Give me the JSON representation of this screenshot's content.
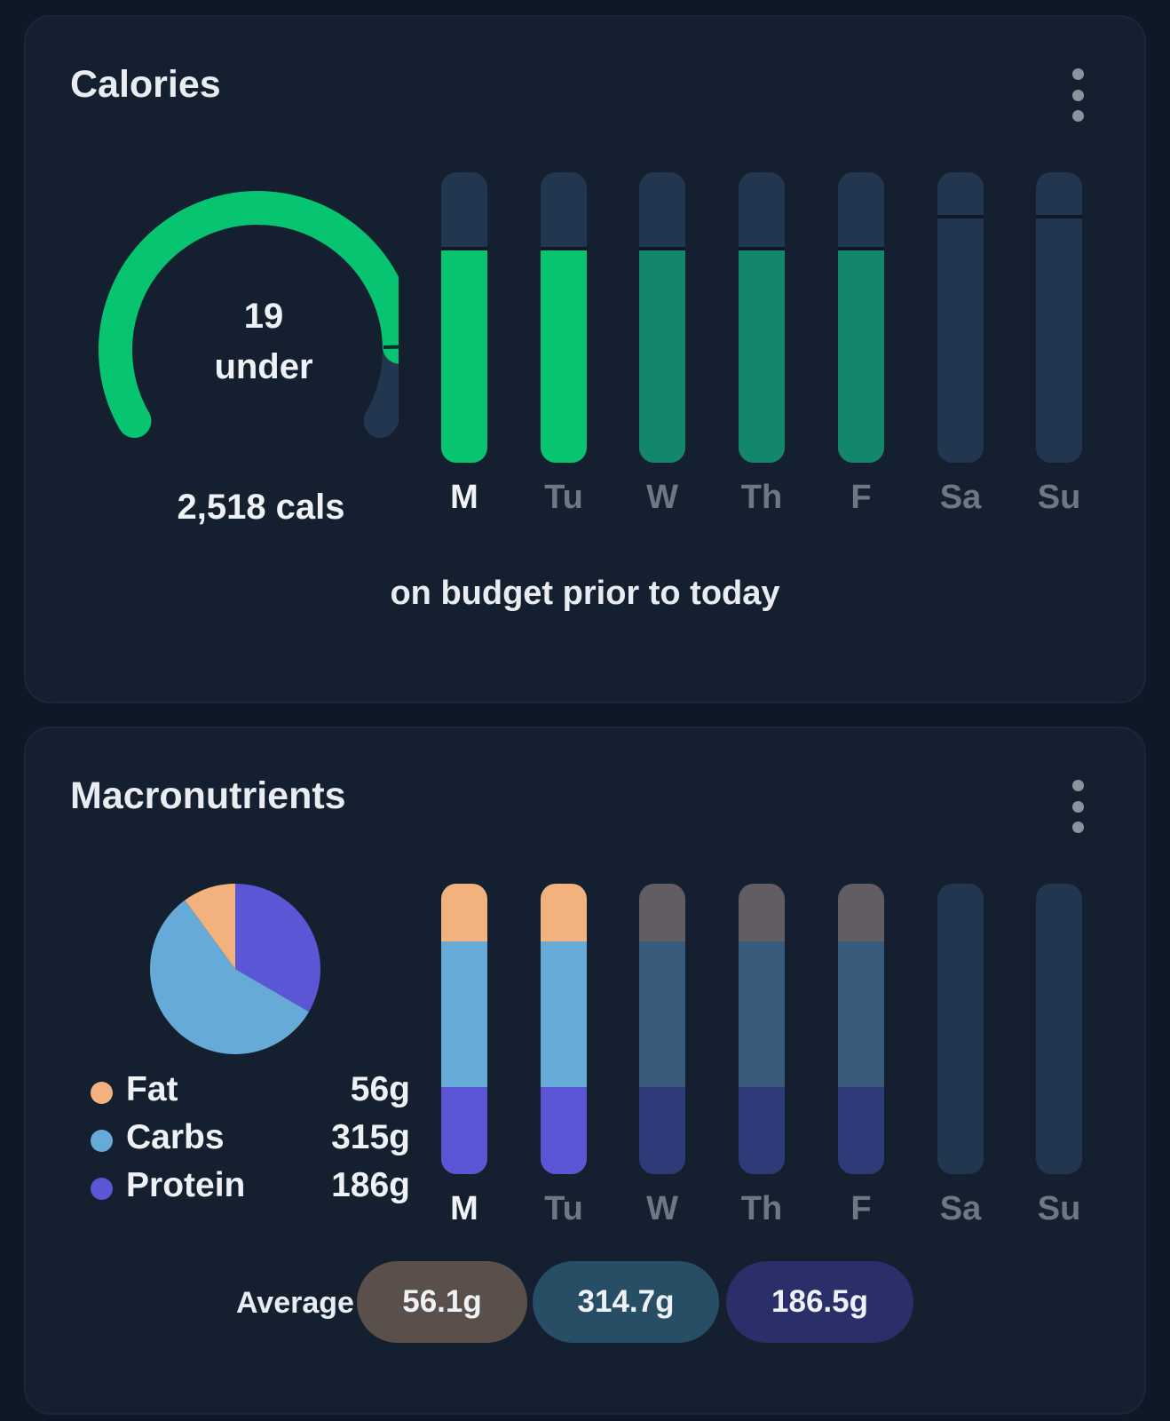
{
  "calories": {
    "title": "Calories",
    "gauge_value": "19",
    "gauge_label": "under",
    "gauge_fraction": 0.87,
    "total": "2,518 cals",
    "footer": "on budget prior to today",
    "days": [
      "M",
      "Tu",
      "W",
      "Th",
      "F",
      "Sa",
      "Su"
    ],
    "today_index": 0,
    "target_fraction": [
      0.73,
      0.73,
      0.73,
      0.73,
      0.73,
      0.84,
      0.84
    ],
    "fill_fraction": [
      0.73,
      0.73,
      0.73,
      0.73,
      0.73,
      0,
      0
    ],
    "colors": {
      "accent": "#06c46f",
      "accent_dim": "#12876c",
      "track": "#223650",
      "target_line": "#10192a"
    }
  },
  "macros": {
    "title": "Macronutrients",
    "legend": [
      {
        "name": "Fat",
        "value": "56g",
        "color": "#f3b27d"
      },
      {
        "name": "Carbs",
        "value": "315g",
        "color": "#66aad7"
      },
      {
        "name": "Protein",
        "value": "186g",
        "color": "#5b56d6"
      }
    ],
    "days": [
      "M",
      "Tu",
      "W",
      "Th",
      "F",
      "Sa",
      "Su"
    ],
    "today_index": 0,
    "bars": [
      {
        "fat": 0.2,
        "carbs": 0.5,
        "protein": 0.3,
        "state": "logged"
      },
      {
        "fat": 0.2,
        "carbs": 0.5,
        "protein": 0.3,
        "state": "logged"
      },
      {
        "fat": 0.2,
        "carbs": 0.5,
        "protein": 0.3,
        "state": "projected"
      },
      {
        "fat": 0.2,
        "carbs": 0.5,
        "protein": 0.3,
        "state": "projected"
      },
      {
        "fat": 0.2,
        "carbs": 0.5,
        "protein": 0.3,
        "state": "projected"
      },
      {
        "fat": 0,
        "carbs": 0,
        "protein": 0,
        "state": "empty"
      },
      {
        "fat": 0,
        "carbs": 0,
        "protein": 0,
        "state": "empty"
      }
    ],
    "dim_colors": {
      "fat": "#625d63",
      "carbs": "#395b7b",
      "protein": "#2f3b78"
    },
    "average": {
      "label": "Average",
      "values": [
        {
          "text": "56.1g",
          "color": "#5a4f4b"
        },
        {
          "text": "314.7g",
          "color": "#284e66"
        },
        {
          "text": "186.5g",
          "color": "#2a2f69"
        }
      ]
    }
  }
}
